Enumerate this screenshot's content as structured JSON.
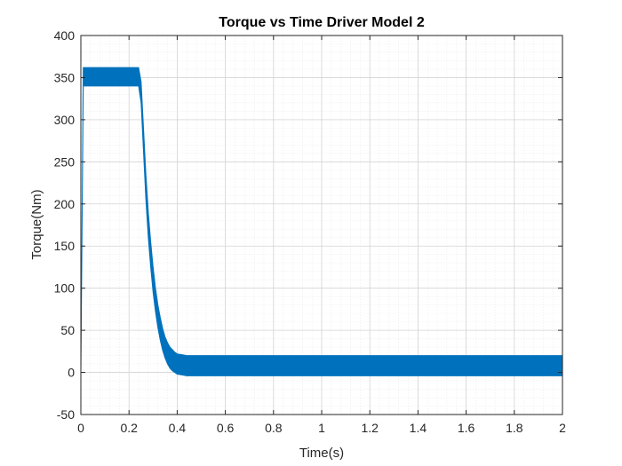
{
  "chart_data": {
    "type": "line",
    "title": "Torque vs Time Driver Model 2",
    "xlabel": "Time(s)",
    "ylabel": "Torque(Nm)",
    "xlim": [
      0,
      2
    ],
    "ylim": [
      -50,
      400
    ],
    "x_ticks": [
      0,
      0.2,
      0.4,
      0.6,
      0.8,
      1,
      1.2,
      1.4,
      1.6,
      1.8,
      2
    ],
    "y_ticks": [
      -50,
      0,
      50,
      100,
      150,
      200,
      250,
      300,
      350,
      400
    ],
    "grid": true,
    "minor_grid": true,
    "line_color": "#0072BD",
    "series": [
      {
        "x": [
          0,
          0.01,
          0.05,
          0.1,
          0.15,
          0.2,
          0.24,
          0.25,
          0.26,
          0.27,
          0.28,
          0.29,
          0.3,
          0.31,
          0.32,
          0.33,
          0.34,
          0.35,
          0.36,
          0.37,
          0.38,
          0.39,
          0.4,
          0.42,
          0.44,
          0.46,
          0.48,
          0.5,
          0.6,
          0.8,
          1.0,
          1.2,
          1.4,
          1.6,
          1.8,
          2.0
        ],
        "upper": [
          0,
          362,
          362,
          362,
          362,
          362,
          362,
          345,
          290,
          235,
          190,
          155,
          125,
          100,
          80,
          65,
          52,
          42,
          35,
          30,
          27,
          24,
          22,
          21,
          20,
          20,
          20,
          20,
          20,
          20,
          20,
          20,
          20,
          20,
          20,
          20
        ],
        "lower": [
          0,
          340,
          340,
          340,
          340,
          340,
          340,
          320,
          262,
          205,
          160,
          125,
          95,
          72,
          53,
          38,
          26,
          17,
          10,
          5,
          2,
          0,
          -2,
          -3,
          -4,
          -4,
          -4,
          -4,
          -4,
          -4,
          -4,
          -4,
          -4,
          -4,
          -4,
          -4
        ]
      }
    ]
  }
}
